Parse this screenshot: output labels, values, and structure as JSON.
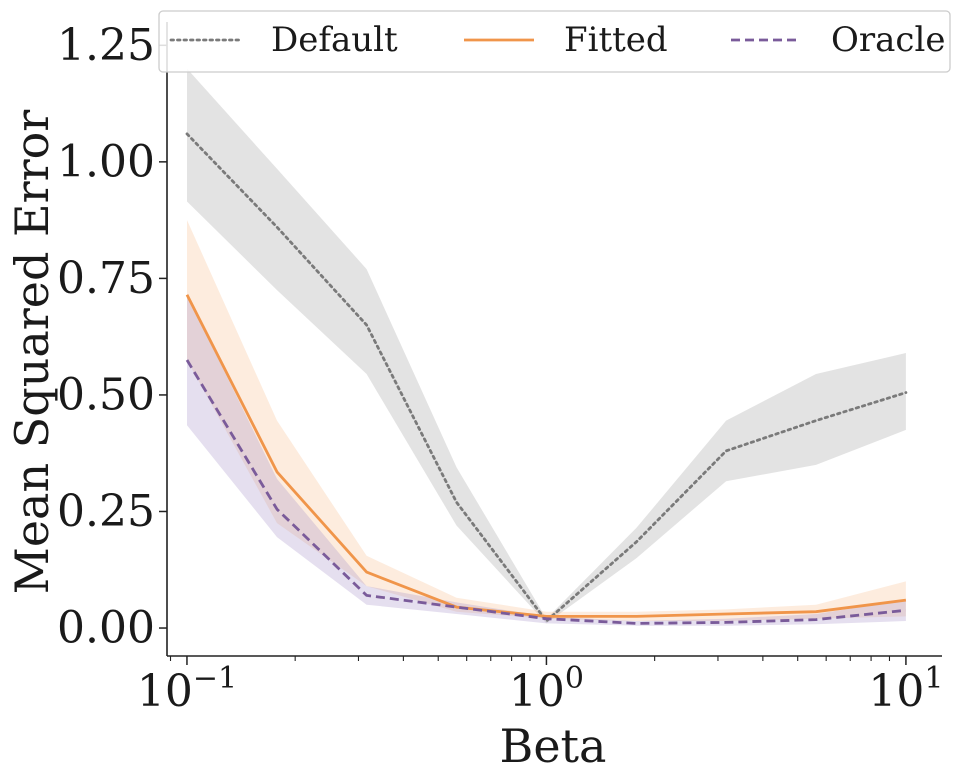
{
  "chart_data": {
    "type": "line",
    "xscale": "log",
    "xlabel": "Beta",
    "ylabel": "Mean Squared Error",
    "xlim": [
      0.088,
      12.6
    ],
    "ylim": [
      -0.06,
      1.3
    ],
    "x_ticks": [
      {
        "value": 0.1,
        "base": "10",
        "exp": "−1"
      },
      {
        "value": 1,
        "base": "10",
        "exp": "0"
      },
      {
        "value": 10,
        "base": "10",
        "exp": "1"
      }
    ],
    "y_ticks": [
      {
        "value": 0.0,
        "label": "0.00"
      },
      {
        "value": 0.25,
        "label": "0.25"
      },
      {
        "value": 0.5,
        "label": "0.50"
      },
      {
        "value": 0.75,
        "label": "0.75"
      },
      {
        "value": 1.0,
        "label": "1.00"
      },
      {
        "value": 1.25,
        "label": "1.25"
      }
    ],
    "x": [
      0.1,
      0.178,
      0.316,
      0.562,
      1.0,
      1.78,
      3.16,
      5.62,
      10.0
    ],
    "series": [
      {
        "name": "Default",
        "color": "#7a7a7a",
        "band_color": "#9a9a9a",
        "dash": "dotted",
        "values": [
          1.06,
          0.86,
          0.65,
          0.27,
          0.015,
          0.185,
          0.38,
          0.445,
          0.505
        ],
        "lower": [
          0.915,
          0.725,
          0.545,
          0.22,
          0.01,
          0.15,
          0.315,
          0.35,
          0.425
        ],
        "upper": [
          1.2,
          0.985,
          0.77,
          0.345,
          0.02,
          0.215,
          0.445,
          0.545,
          0.59
        ]
      },
      {
        "name": "Fitted",
        "color": "#f0954a",
        "band_color": "#f7b98a",
        "dash": "solid",
        "values": [
          0.715,
          0.335,
          0.12,
          0.045,
          0.025,
          0.025,
          0.03,
          0.035,
          0.06
        ],
        "lower": [
          0.575,
          0.225,
          0.09,
          0.035,
          0.02,
          0.015,
          0.015,
          0.02,
          0.025
        ],
        "upper": [
          0.875,
          0.445,
          0.155,
          0.065,
          0.035,
          0.035,
          0.04,
          0.05,
          0.1
        ]
      },
      {
        "name": "Oracle",
        "color": "#7a5b9a",
        "band_color": "#a08cc4",
        "dash": "dashed",
        "values": [
          0.575,
          0.255,
          0.07,
          0.045,
          0.02,
          0.01,
          0.012,
          0.018,
          0.038
        ],
        "lower": [
          0.435,
          0.195,
          0.05,
          0.03,
          0.01,
          0.005,
          0.005,
          0.008,
          0.015
        ],
        "upper": [
          0.715,
          0.32,
          0.09,
          0.055,
          0.025,
          0.015,
          0.02,
          0.03,
          0.06
        ]
      }
    ],
    "legend": {
      "position": "top",
      "entries": [
        "Default",
        "Fitted",
        "Oracle"
      ]
    }
  }
}
